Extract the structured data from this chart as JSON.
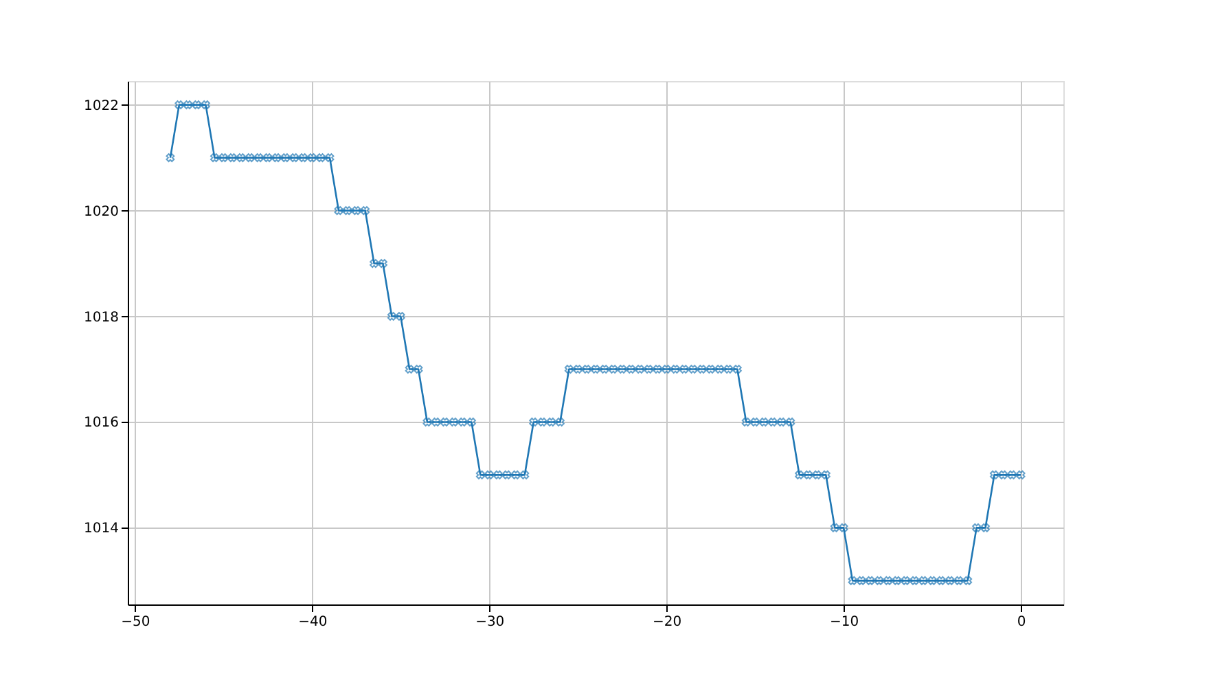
{
  "chart_data": {
    "type": "line",
    "x": [
      -48,
      -47.5,
      -47,
      -46.5,
      -46,
      -45.5,
      -45,
      -44.5,
      -44,
      -43.5,
      -43,
      -42.5,
      -42,
      -41.5,
      -41,
      -40.5,
      -40,
      -39.5,
      -39,
      -38.5,
      -38,
      -37.5,
      -37,
      -36.5,
      -36,
      -35.5,
      -35,
      -34.5,
      -34,
      -33.5,
      -33,
      -32.5,
      -32,
      -31.5,
      -31,
      -30.5,
      -30,
      -29.5,
      -29,
      -28.5,
      -28,
      -27.5,
      -27,
      -26.5,
      -26,
      -25.5,
      -25,
      -24.5,
      -24,
      -23.5,
      -23,
      -22.5,
      -22,
      -21.5,
      -21,
      -20.5,
      -20,
      -19.5,
      -19,
      -18.5,
      -18,
      -17.5,
      -17,
      -16.5,
      -16,
      -15.5,
      -15,
      -14.5,
      -14,
      -13.5,
      -13,
      -12.5,
      -12,
      -11.5,
      -11,
      -10.5,
      -10,
      -9.5,
      -9,
      -8.5,
      -8,
      -7.5,
      -7,
      -6.5,
      -6,
      -5.5,
      -5,
      -4.5,
      -4,
      -3.5,
      -3,
      -2.5,
      -2,
      -1.5,
      -1,
      -0.5,
      0
    ],
    "series": [
      {
        "color": "#1f77b4",
        "values": [
          1021,
          1022,
          1022,
          1022,
          1022,
          1021,
          1021,
          1021,
          1021,
          1021,
          1021,
          1021,
          1021,
          1021,
          1021,
          1021,
          1021,
          1021,
          1021,
          1020,
          1020,
          1020,
          1020,
          1019,
          1019,
          1018,
          1018,
          1017,
          1017,
          1016,
          1016,
          1016,
          1016,
          1016,
          1016,
          1015,
          1015,
          1015,
          1015,
          1015,
          1015,
          1016,
          1016,
          1016,
          1016,
          1017,
          1017,
          1017,
          1017,
          1017,
          1017,
          1017,
          1017,
          1017,
          1017,
          1017,
          1017,
          1017,
          1017,
          1017,
          1017,
          1017,
          1017,
          1017,
          1017,
          1016,
          1016,
          1016,
          1016,
          1016,
          1016,
          1015,
          1015,
          1015,
          1015,
          1014,
          1014,
          1013,
          1013,
          1013,
          1013,
          1013,
          1013,
          1013,
          1013,
          1013,
          1013,
          1013,
          1013,
          1013,
          1013,
          1014,
          1014,
          1015,
          1015,
          1015,
          1015
        ]
      }
    ],
    "xlim": [
      -50.4,
      2.4
    ],
    "xticks": [
      -50,
      -40,
      -30,
      -20,
      -10,
      0
    ],
    "ylim": [
      1012.55,
      1022.45
    ],
    "yticks": [
      1014,
      1016,
      1018,
      1020,
      1022
    ],
    "grid": true,
    "marker": "cross",
    "line_style": "solid"
  }
}
